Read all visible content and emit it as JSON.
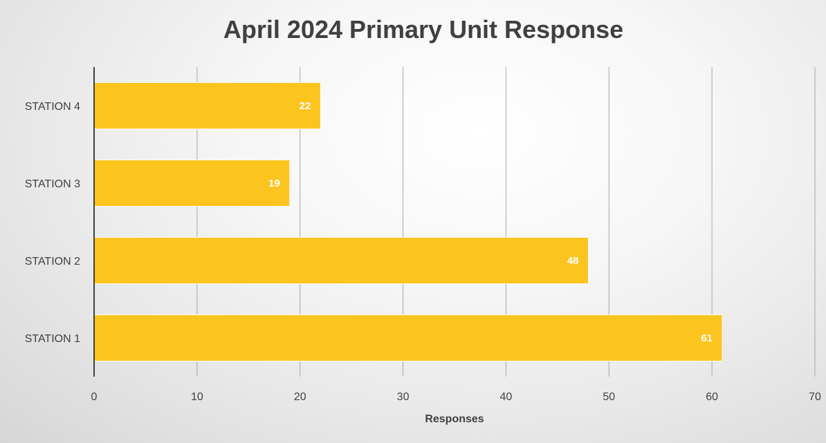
{
  "chart_data": {
    "type": "bar",
    "orientation": "horizontal",
    "title": "April 2024 Primary Unit Response",
    "xlabel": "Responses",
    "ylabel": "",
    "categories": [
      "STATION 1",
      "STATION 2",
      "STATION 3",
      "STATION 4"
    ],
    "values": [
      61,
      48,
      19,
      22
    ],
    "xlim": [
      0,
      70
    ],
    "xticks": [
      0,
      10,
      20,
      30,
      40,
      50,
      60,
      70
    ],
    "grid": "vertical",
    "legend": "none",
    "bar_color": "#FCC41F",
    "label_color": "#FFFFFF"
  }
}
